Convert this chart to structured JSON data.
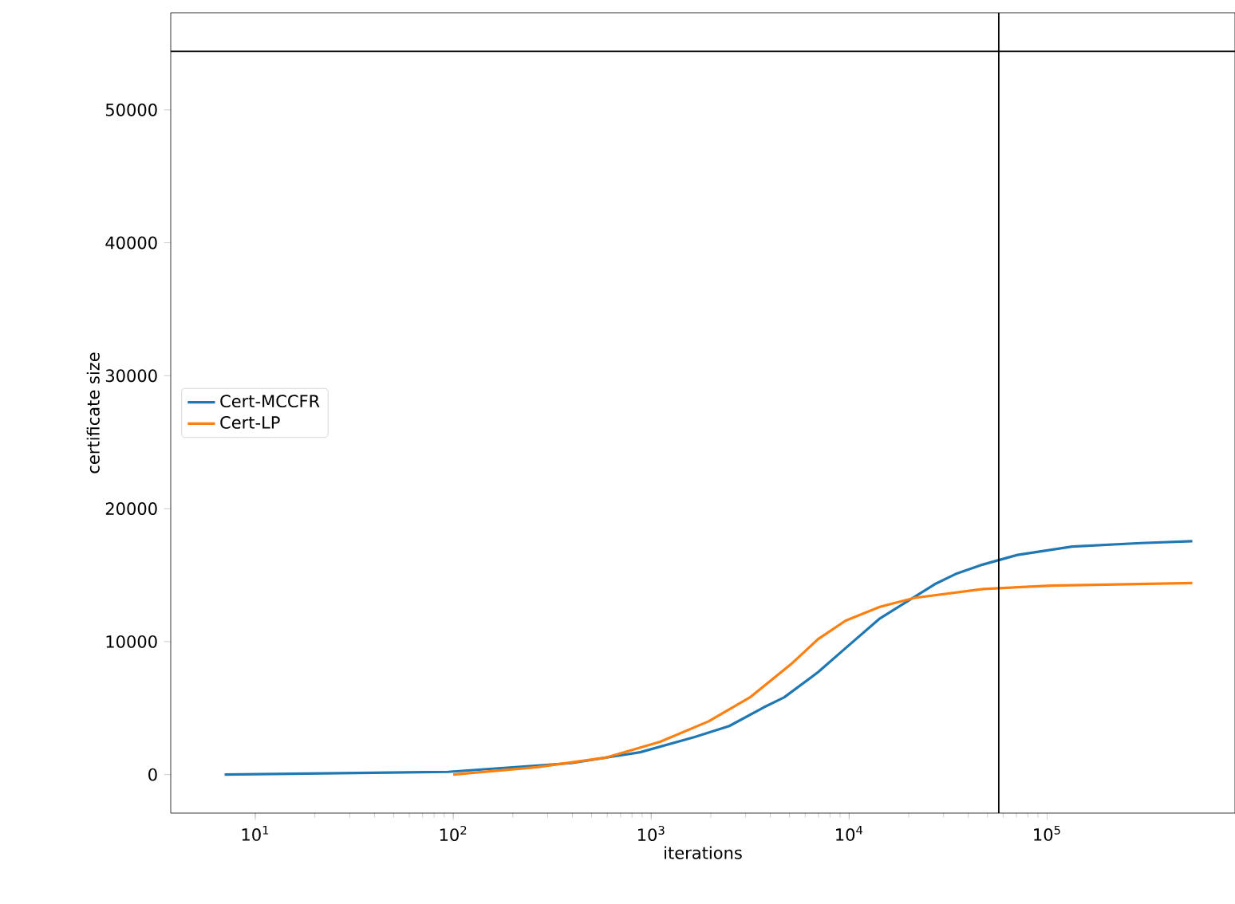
{
  "chart_data": {
    "type": "line",
    "xlabel": "iterations",
    "ylabel": "certificate size",
    "log": "x",
    "legend": "center left",
    "xlim": [
      3.74,
      890000
    ],
    "ylim": [
      -2900,
      57300
    ],
    "xticks": [
      {
        "value": 10,
        "label": "10$^{1}$"
      },
      {
        "value": 100,
        "label": "10$^{2}$"
      },
      {
        "value": 1000,
        "label": "10$^{3}$"
      },
      {
        "value": 10000,
        "label": "10$^{4}$"
      },
      {
        "value": 100000,
        "label": "10$^{5}$"
      }
    ],
    "yticks": [
      0,
      10000,
      20000,
      30000,
      40000,
      50000
    ],
    "series": [
      {
        "name": "Cert-MCCFR",
        "color": "#1f77b4",
        "x": [
          7,
          94,
          395,
          880,
          1660,
          2480,
          3690,
          4690,
          6980,
          9610,
          14300,
          27100,
          34500,
          47500,
          70800,
          134000,
          298000,
          542000
        ],
        "values": [
          0,
          200,
          860,
          1680,
          2820,
          3650,
          5040,
          5800,
          7710,
          9520,
          11740,
          14320,
          15080,
          15800,
          16520,
          17150,
          17410,
          17550
        ]
      },
      {
        "name": "Cert-LP",
        "color": "#ff7f0e",
        "x": [
          100,
          265,
          589,
          1110,
          1950,
          3150,
          5080,
          6980,
          9610,
          14300,
          21400,
          47500,
          105000,
          542000
        ],
        "values": [
          0,
          550,
          1270,
          2460,
          4000,
          5800,
          8290,
          10190,
          11580,
          12610,
          13290,
          13960,
          14210,
          14410
        ]
      }
    ],
    "ref_lines": [
      {
        "axis": "y",
        "value": 54400,
        "color": "#000000"
      },
      {
        "axis": "x",
        "value": 57000,
        "color": "#000000"
      }
    ]
  }
}
